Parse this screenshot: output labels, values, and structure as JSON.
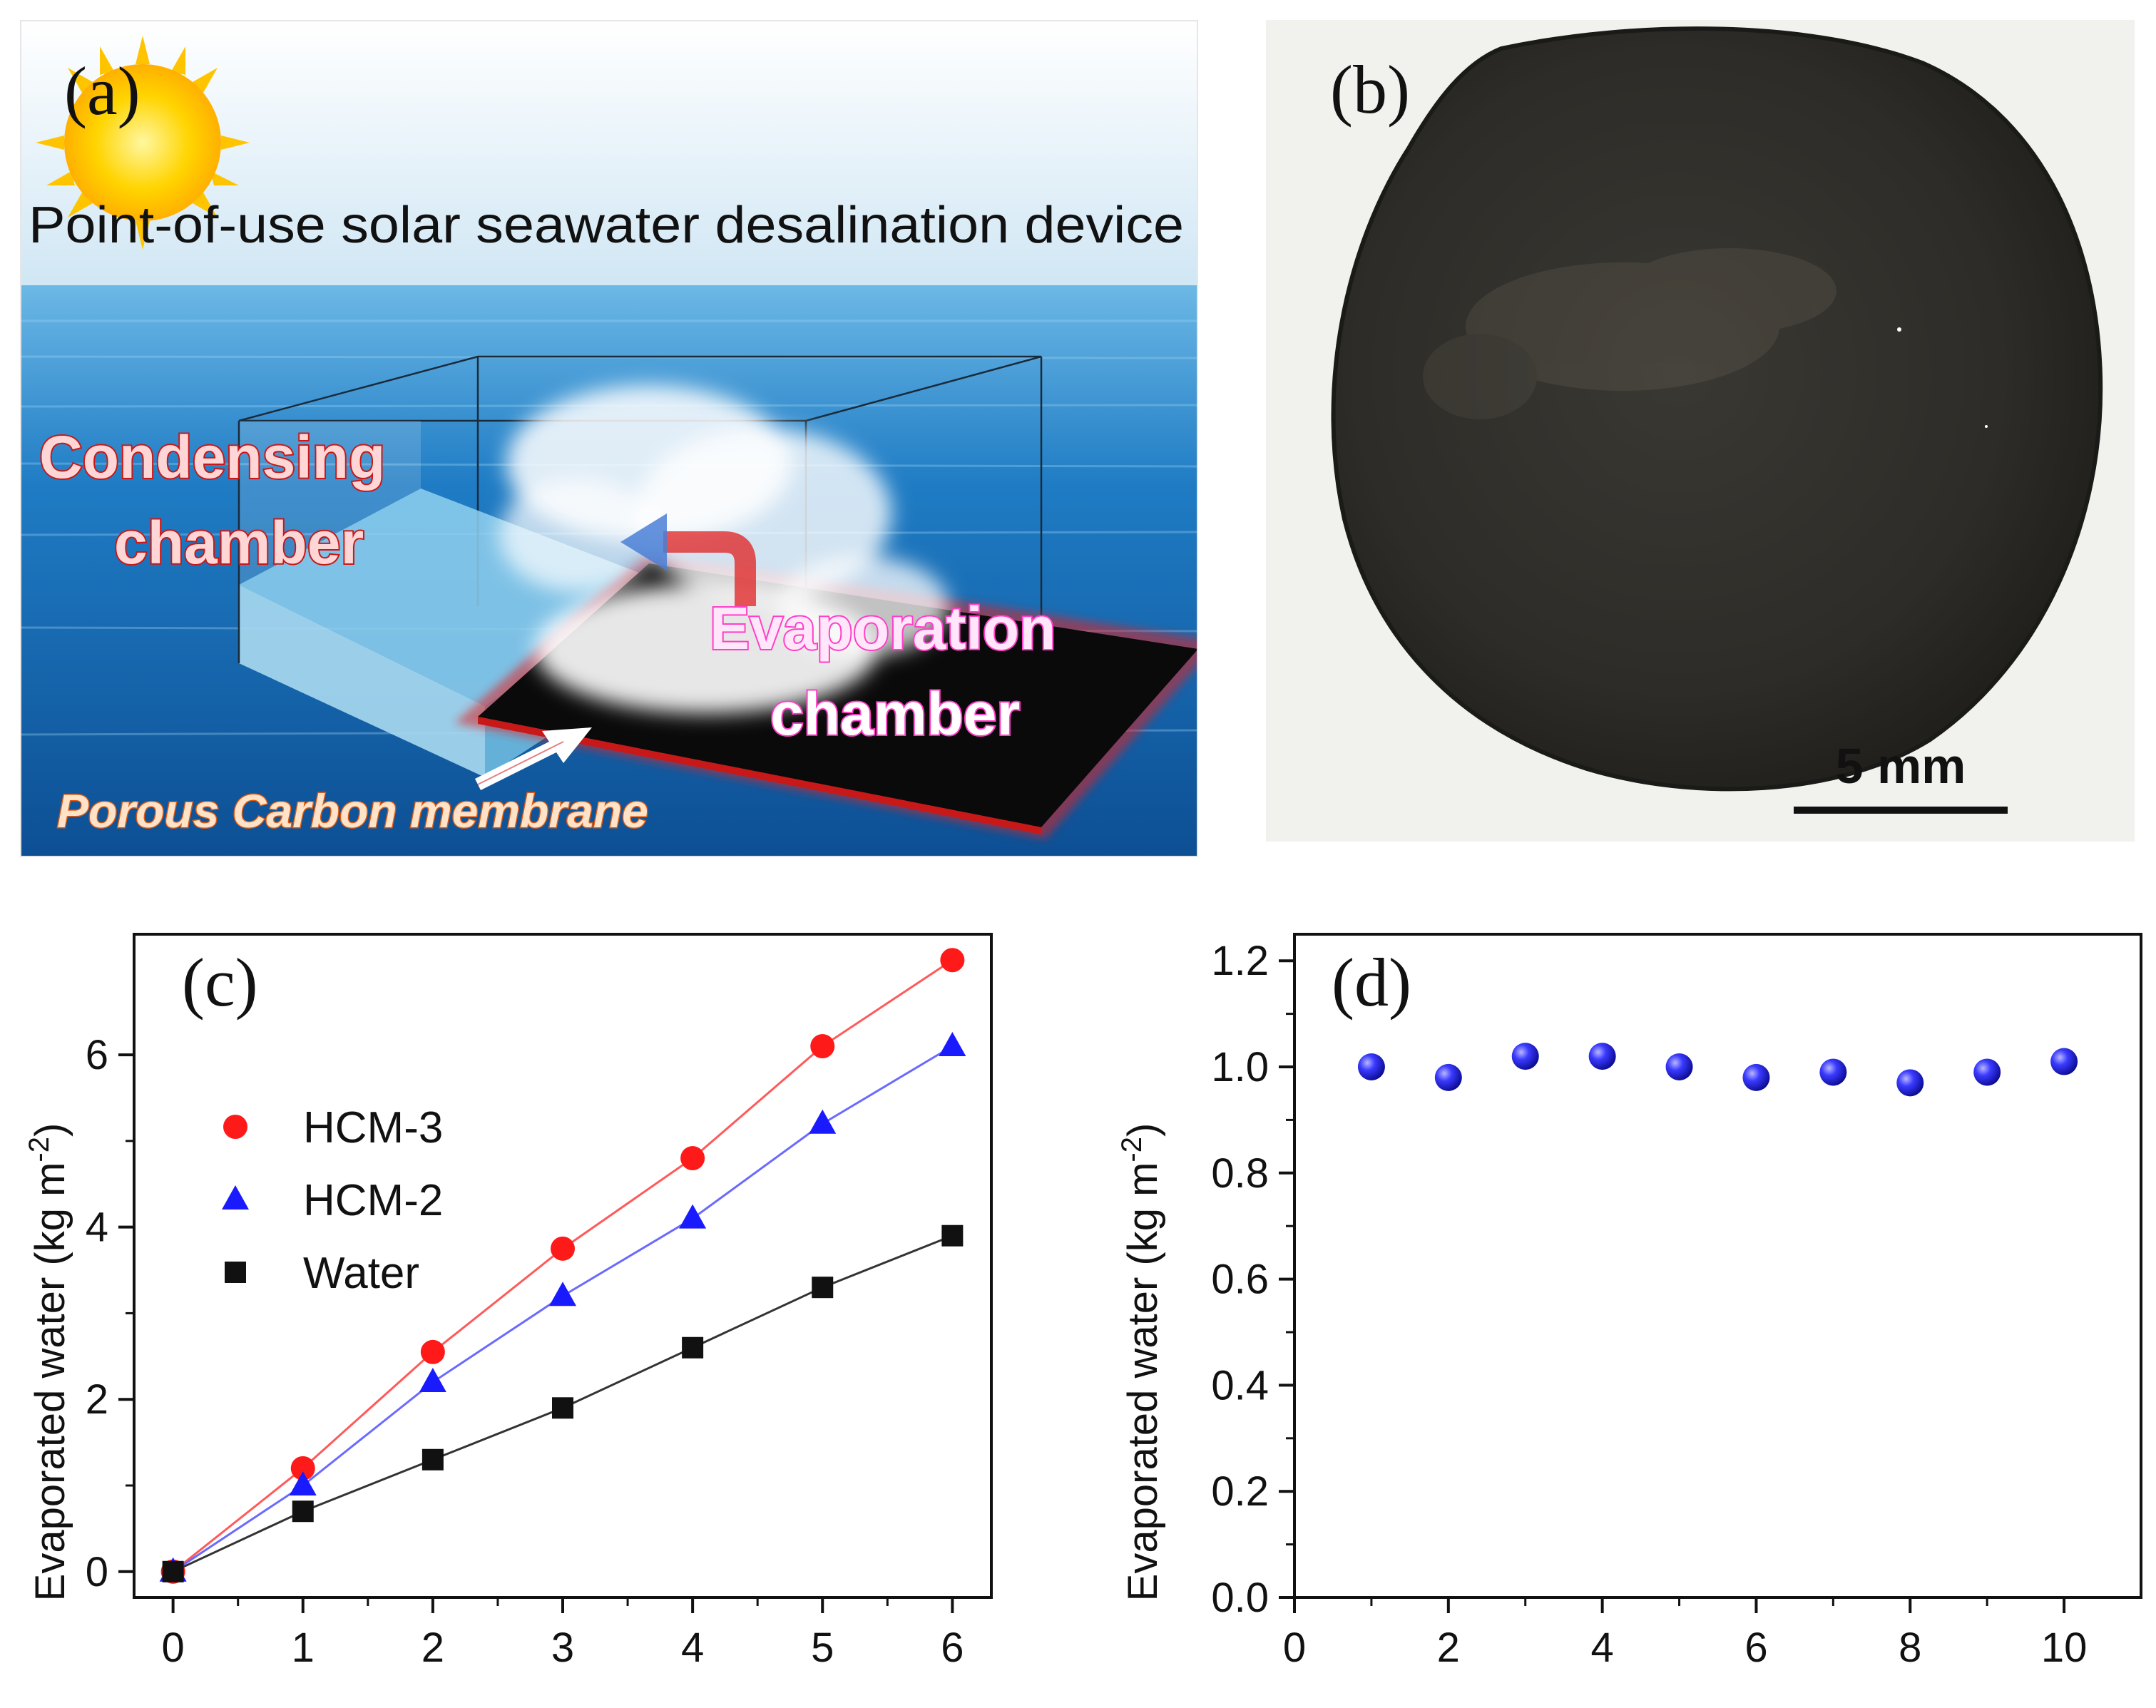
{
  "panel_a": {
    "label": "(a)",
    "title": "Point-of-use solar seawater desalination device",
    "condensing_line1": "Condensing",
    "condensing_line2": "chamber",
    "evaporation_line1": "Evaporation",
    "evaporation_line2": "chamber",
    "membrane_label": "Porous Carbon membrane",
    "colors": {
      "sun": "#ffd400",
      "sea": "#1a6fb8",
      "sky": "#d8ecf6",
      "membrane_glow": "#e02020",
      "evaporation_text": "#ff5ad2"
    }
  },
  "panel_b": {
    "label": "(b)",
    "scale_bar_label": "5 mm",
    "colors": {
      "disc": "#2e2c28",
      "background": "#f1f1ee"
    }
  },
  "chart_data": [
    {
      "panel": "(c)",
      "type": "line",
      "title": "",
      "xlabel": "",
      "ylabel": "Evaporated water (kg m",
      "ylabel_sup": "-2",
      "ylabel_close": ")",
      "xlim": [
        -0.3,
        6.3
      ],
      "ylim": [
        -0.3,
        7.4
      ],
      "xticks": [
        "0",
        "1",
        "2",
        "3",
        "4",
        "5",
        "6"
      ],
      "yticks": [
        "0",
        "2",
        "4",
        "6"
      ],
      "legend": "top-left",
      "series": [
        {
          "name": "HCM-3",
          "marker": "circle",
          "color": "#ff1a1a",
          "line_color": "#ff5a5a",
          "x": [
            0,
            1,
            2,
            3,
            4,
            5,
            6
          ],
          "y": [
            0,
            1.2,
            2.55,
            3.75,
            4.8,
            6.1,
            7.1
          ]
        },
        {
          "name": "HCM-2",
          "marker": "triangle",
          "color": "#1a1aff",
          "line_color": "#6a6aff",
          "x": [
            0,
            1,
            2,
            3,
            4,
            5,
            6
          ],
          "y": [
            0,
            1.0,
            2.2,
            3.2,
            4.1,
            5.2,
            6.1
          ]
        },
        {
          "name": "Water",
          "marker": "square",
          "color": "#111111",
          "line_color": "#333333",
          "x": [
            0,
            1,
            2,
            3,
            4,
            5,
            6
          ],
          "y": [
            0,
            0.7,
            1.3,
            1.9,
            2.6,
            3.3,
            3.9
          ]
        }
      ]
    },
    {
      "panel": "(d)",
      "type": "scatter",
      "title": "",
      "xlabel": "",
      "ylabel": "Evaporated water (kg m",
      "ylabel_sup": "-2",
      "ylabel_close": ")",
      "xlim": [
        0,
        11
      ],
      "ylim": [
        0,
        1.25
      ],
      "xticks": [
        "0",
        "2",
        "4",
        "6",
        "8",
        "10"
      ],
      "yticks": [
        "0.0",
        "0.2",
        "0.4",
        "0.6",
        "0.8",
        "1.0",
        "1.2"
      ],
      "series": [
        {
          "marker": "sphere",
          "color": "#1e1ee8",
          "x": [
            1,
            2,
            3,
            4,
            5,
            6,
            7,
            8,
            9,
            10
          ],
          "y": [
            1.0,
            0.98,
            1.02,
            1.02,
            1.0,
            0.98,
            0.99,
            0.97,
            0.99,
            1.01
          ]
        }
      ]
    }
  ]
}
